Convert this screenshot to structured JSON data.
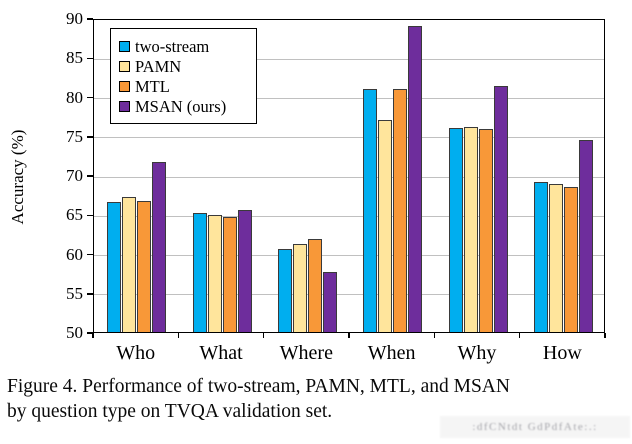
{
  "figure": {
    "caption_lines": [
      "Figure 4. Performance of two-stream, PAMN, MTL, and MSAN",
      "by question type on TVQA validation set."
    ],
    "watermark_text": ":dfCNtdt GdPdfAte:.:"
  },
  "chart_data": {
    "type": "bar",
    "title": "",
    "xlabel": "",
    "ylabel": "Accuracy (%)",
    "ylim": [
      50,
      90
    ],
    "yticks": [
      50,
      55,
      60,
      65,
      70,
      75,
      80,
      85,
      90
    ],
    "grid": true,
    "legend_position": "top-left-inside",
    "categories": [
      "Who",
      "What",
      "Where",
      "When",
      "Why",
      "How"
    ],
    "series": [
      {
        "name": "two-stream",
        "color": "#00AEEF",
        "values": [
          66.5,
          65.2,
          60.6,
          81.0,
          76.0,
          69.1
        ]
      },
      {
        "name": "PAMN",
        "color": "#FFE59C",
        "values": [
          67.2,
          64.9,
          61.2,
          77.0,
          76.1,
          68.8
        ]
      },
      {
        "name": "MTL",
        "color": "#F89838",
        "values": [
          66.7,
          64.7,
          61.8,
          81.0,
          75.9,
          68.5
        ]
      },
      {
        "name": "MSAN (ours)",
        "color": "#6E2D9C",
        "values": [
          71.7,
          65.6,
          57.6,
          89.0,
          81.3,
          74.4
        ]
      }
    ],
    "gridline_color": "#c0c0c0",
    "bar_border_color": "#3a3a3a",
    "axis_color": "#000000"
  }
}
